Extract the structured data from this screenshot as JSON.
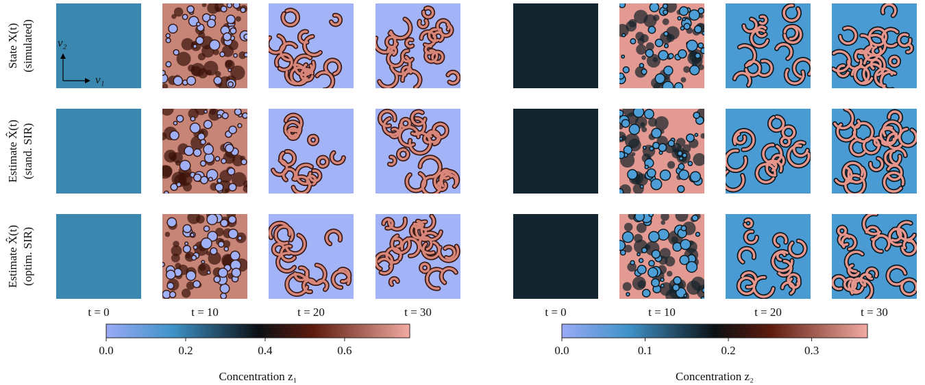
{
  "row_labels": [
    {
      "line1": "State X(t)",
      "line2": "(simulated)"
    },
    {
      "line1": "Estimate X̂(t)",
      "line2": "(stand. SIR)"
    },
    {
      "line1": "Estimate X̂(t)",
      "line2": "(optim. SIR)"
    }
  ],
  "axis_arrows": {
    "v1": "v₁",
    "v2": "v₂"
  },
  "panels": [
    {
      "time_labels": [
        "t = 0",
        "t = 10",
        "t = 20",
        "t = 30"
      ],
      "colorbar": {
        "lim": [
          0,
          0.764
        ],
        "ticks": [
          {
            "value": 0,
            "label": "0.0"
          },
          0.2,
          0.4,
          0.6
        ],
        "label": "Concentration z₁"
      }
    },
    {
      "time_labels": [
        "t = 0",
        "t = 10",
        "t = 20",
        "t = 30"
      ],
      "colorbar": {
        "lim": [
          0,
          0.367
        ],
        "ticks": [
          {
            "value": 0,
            "label": "0.0"
          },
          0.1,
          0.2,
          0.3
        ],
        "label": "Concentration z₂"
      }
    }
  ]
}
